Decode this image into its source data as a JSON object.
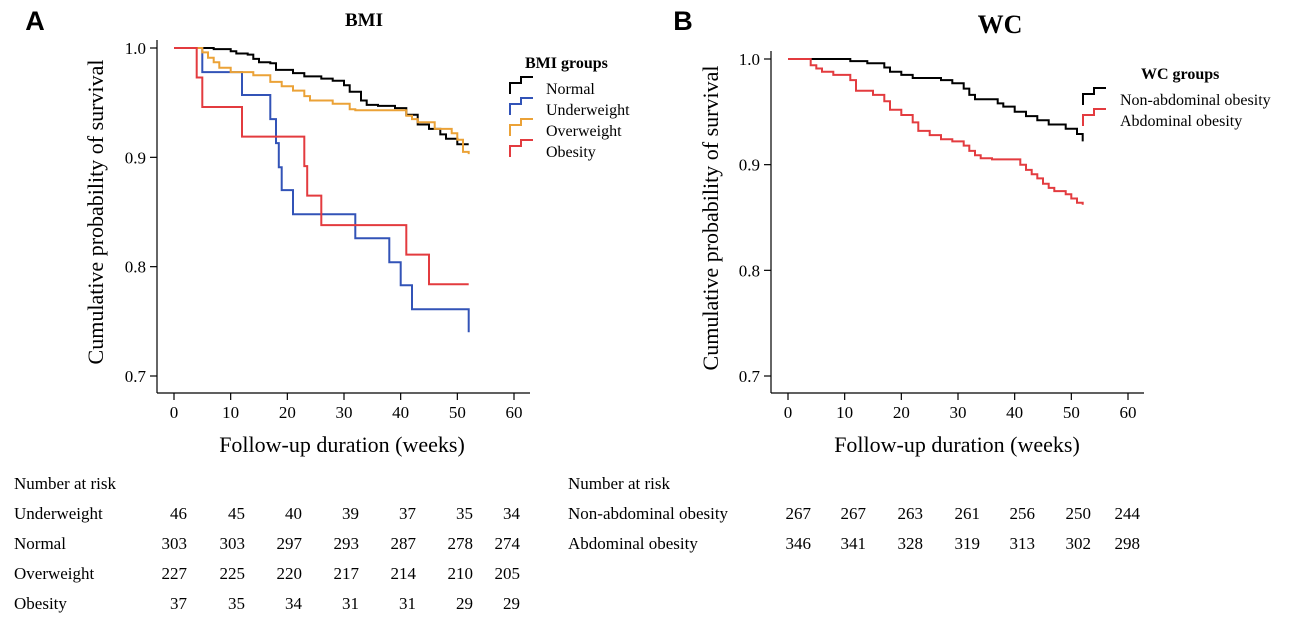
{
  "chart_data": [
    {
      "type": "line",
      "panel_label": "A",
      "title": "BMI",
      "xlabel": "Follow-up duration (weeks)",
      "ylabel": "Cumulative probability of survival",
      "xlim": [
        0,
        60
      ],
      "ylim": [
        0.7,
        1.0
      ],
      "xticks": [
        0,
        10,
        20,
        30,
        40,
        50,
        60
      ],
      "yticks": [
        0.7,
        0.8,
        0.9,
        1.0
      ],
      "ytick_labels": [
        "0.7",
        "0.8",
        "0.9",
        "1.0"
      ],
      "legend_title": "BMI groups",
      "legend_position": "top-right",
      "series": [
        {
          "name": "Normal",
          "color": "#000000",
          "steps": [
            [
              0,
              1.0
            ],
            [
              7,
              0.999
            ],
            [
              10,
              0.997
            ],
            [
              11,
              0.995
            ],
            [
              13,
              0.994
            ],
            [
              14,
              0.99
            ],
            [
              15,
              0.987
            ],
            [
              17,
              0.986
            ],
            [
              18,
              0.98
            ],
            [
              21,
              0.977
            ],
            [
              23,
              0.974
            ],
            [
              26,
              0.972
            ],
            [
              28,
              0.97
            ],
            [
              30,
              0.966
            ],
            [
              31,
              0.96
            ],
            [
              33,
              0.952
            ],
            [
              34,
              0.948
            ],
            [
              36,
              0.947
            ],
            [
              39,
              0.945
            ],
            [
              41,
              0.939
            ],
            [
              43,
              0.93
            ],
            [
              45,
              0.926
            ],
            [
              47,
              0.921
            ],
            [
              48,
              0.917
            ],
            [
              50,
              0.912
            ],
            [
              52,
              0.912
            ]
          ]
        },
        {
          "name": "Underweight",
          "color": "#3253b7",
          "steps": [
            [
              0,
              1.0
            ],
            [
              5,
              0.978
            ],
            [
              12,
              0.957
            ],
            [
              17,
              0.935
            ],
            [
              18,
              0.913
            ],
            [
              18.5,
              0.891
            ],
            [
              19,
              0.87
            ],
            [
              21,
              0.848
            ],
            [
              27,
              0.848
            ],
            [
              32,
              0.826
            ],
            [
              38,
              0.804
            ],
            [
              40,
              0.783
            ],
            [
              42,
              0.761
            ],
            [
              52,
              0.74
            ]
          ]
        },
        {
          "name": "Overweight",
          "color": "#eba237",
          "steps": [
            [
              0,
              1.0
            ],
            [
              5,
              0.996
            ],
            [
              6,
              0.991
            ],
            [
              7,
              0.987
            ],
            [
              8,
              0.982
            ],
            [
              10,
              0.978
            ],
            [
              14,
              0.975
            ],
            [
              17,
              0.969
            ],
            [
              19,
              0.965
            ],
            [
              21,
              0.961
            ],
            [
              23,
              0.956
            ],
            [
              24,
              0.952
            ],
            [
              28,
              0.949
            ],
            [
              31,
              0.944
            ],
            [
              32,
              0.943
            ],
            [
              41,
              0.938
            ],
            [
              42,
              0.935
            ],
            [
              43,
              0.932
            ],
            [
              46,
              0.926
            ],
            [
              49,
              0.922
            ],
            [
              50,
              0.916
            ],
            [
              51,
              0.905
            ],
            [
              52,
              0.903
            ]
          ]
        },
        {
          "name": "Obesity",
          "color": "#e33b3f",
          "steps": [
            [
              0,
              1.0
            ],
            [
              4,
              0.973
            ],
            [
              5,
              0.946
            ],
            [
              12,
              0.919
            ],
            [
              23,
              0.892
            ],
            [
              23.5,
              0.865
            ],
            [
              26,
              0.838
            ],
            [
              41,
              0.811
            ],
            [
              45,
              0.784
            ],
            [
              52,
              0.784
            ]
          ]
        }
      ],
      "risk_table": {
        "header": "Number at risk",
        "rows": [
          {
            "label": "Underweight",
            "values": [
              "46",
              "45",
              "40",
              "39",
              "37",
              "35",
              "34"
            ]
          },
          {
            "label": "Normal",
            "values": [
              "303",
              "303",
              "297",
              "293",
              "287",
              "278",
              "274"
            ]
          },
          {
            "label": "Overweight",
            "values": [
              "227",
              "225",
              "220",
              "217",
              "214",
              "210",
              "205"
            ]
          },
          {
            "label": "Obesity",
            "values": [
              "37",
              "35",
              "34",
              "31",
              "31",
              "29",
              "29"
            ]
          }
        ]
      }
    },
    {
      "type": "line",
      "panel_label": "B",
      "title": "WC",
      "xlabel": "Follow-up duration (weeks)",
      "ylabel": "Cumulative probability of survival",
      "xlim": [
        0,
        60
      ],
      "ylim": [
        0.7,
        1.0
      ],
      "xticks": [
        0,
        10,
        20,
        30,
        40,
        50,
        60
      ],
      "yticks": [
        0.7,
        0.8,
        0.9,
        1.0
      ],
      "ytick_labels": [
        "0.7",
        "0.8",
        "0.9",
        "1.0"
      ],
      "legend_title": "WC groups",
      "legend_position": "top-right",
      "series": [
        {
          "name": "Non-abdominal obesity",
          "color": "#000000",
          "steps": [
            [
              0,
              1.0
            ],
            [
              11,
              0.998
            ],
            [
              14,
              0.996
            ],
            [
              17,
              0.992
            ],
            [
              18,
              0.988
            ],
            [
              20,
              0.985
            ],
            [
              22,
              0.982
            ],
            [
              27,
              0.98
            ],
            [
              29,
              0.977
            ],
            [
              31,
              0.972
            ],
            [
              32,
              0.966
            ],
            [
              33,
              0.962
            ],
            [
              37,
              0.958
            ],
            [
              38,
              0.955
            ],
            [
              40,
              0.95
            ],
            [
              42,
              0.946
            ],
            [
              44,
              0.942
            ],
            [
              46,
              0.938
            ],
            [
              49,
              0.934
            ],
            [
              51,
              0.929
            ],
            [
              52,
              0.922
            ]
          ]
        },
        {
          "name": "Abdominal obesity",
          "color": "#e33b3f",
          "steps": [
            [
              0,
              1.0
            ],
            [
              4,
              0.994
            ],
            [
              5,
              0.991
            ],
            [
              6,
              0.988
            ],
            [
              8,
              0.985
            ],
            [
              11,
              0.98
            ],
            [
              12,
              0.97
            ],
            [
              15,
              0.966
            ],
            [
              17,
              0.96
            ],
            [
              18,
              0.952
            ],
            [
              20,
              0.947
            ],
            [
              22,
              0.94
            ],
            [
              23,
              0.932
            ],
            [
              25,
              0.928
            ],
            [
              27,
              0.924
            ],
            [
              29,
              0.922
            ],
            [
              31,
              0.918
            ],
            [
              32,
              0.913
            ],
            [
              33,
              0.909
            ],
            [
              34,
              0.906
            ],
            [
              36,
              0.905
            ],
            [
              41,
              0.9
            ],
            [
              42,
              0.895
            ],
            [
              43,
              0.891
            ],
            [
              44,
              0.887
            ],
            [
              45,
              0.882
            ],
            [
              46,
              0.878
            ],
            [
              47,
              0.875
            ],
            [
              49,
              0.872
            ],
            [
              50,
              0.868
            ],
            [
              51,
              0.864
            ],
            [
              52,
              0.862
            ]
          ]
        }
      ],
      "risk_table": {
        "header": "Number at risk",
        "rows": [
          {
            "label": "Non-abdominal obesity",
            "values": [
              "267",
              "267",
              "263",
              "261",
              "256",
              "250",
              "244"
            ]
          },
          {
            "label": "Abdominal obesity",
            "values": [
              "346",
              "341",
              "328",
              "319",
              "313",
              "302",
              "298"
            ]
          }
        ]
      }
    }
  ]
}
